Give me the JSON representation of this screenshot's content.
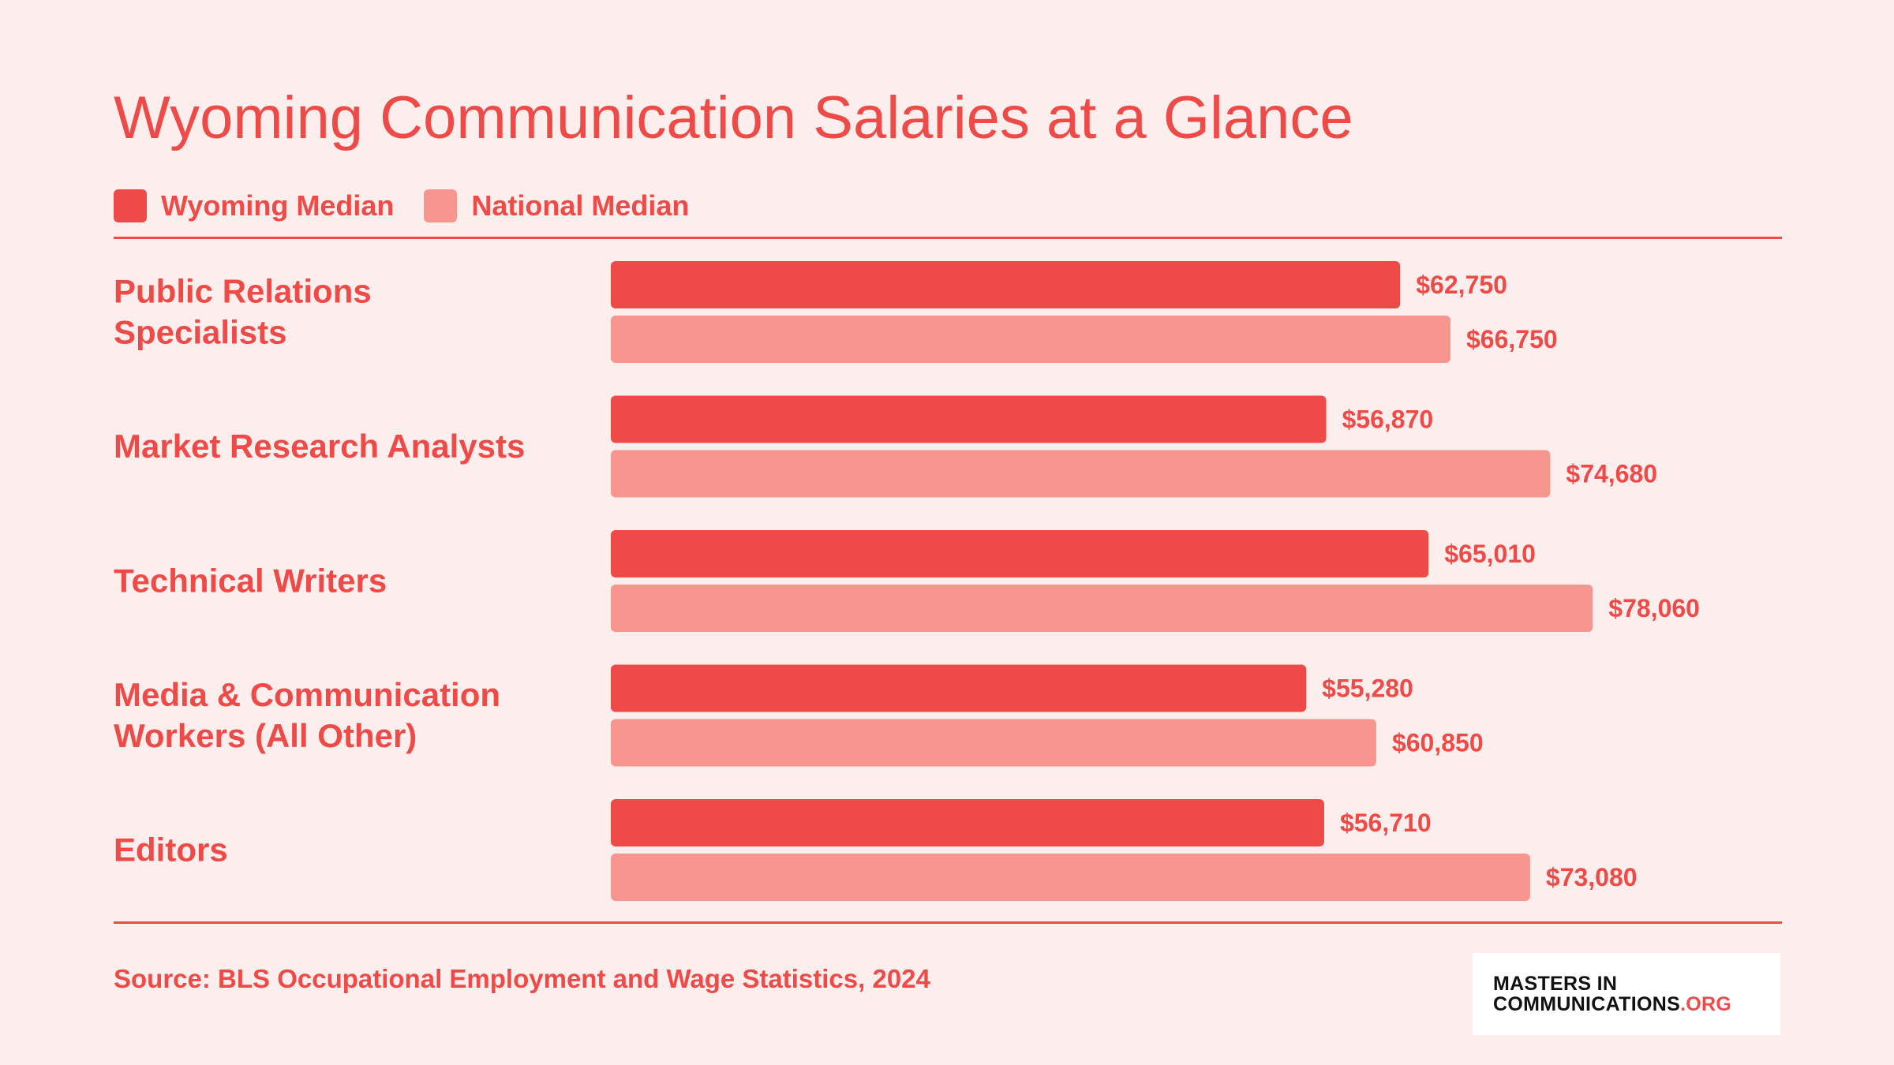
{
  "chart_data": {
    "type": "bar",
    "orientation": "horizontal",
    "title": "Wyoming Communication Salaries at a Glance",
    "categories": [
      [
        "Public Relations",
        "Specialists"
      ],
      [
        "Market Research Analysts"
      ],
      [
        "Technical Writers"
      ],
      [
        "Media & Communication",
        "Workers (All Other)"
      ],
      [
        "Editors"
      ]
    ],
    "series": [
      {
        "name": "Wyoming Median",
        "color": "#ee4a47",
        "values": [
          62750,
          56870,
          65010,
          55280,
          56710
        ],
        "labels": [
          "$62,750",
          "$56,870",
          "$65,010",
          "$55,280",
          "$56,710"
        ]
      },
      {
        "name": "National Median",
        "color": "#f7958f",
        "values": [
          66750,
          74680,
          78060,
          60850,
          73080
        ],
        "labels": [
          "$66,750",
          "$74,680",
          "$78,060",
          "$60,850",
          "$73,080"
        ]
      }
    ],
    "xlim": [
      0,
      90000
    ],
    "legend_position": "top-left",
    "grid": false
  },
  "footer": {
    "source": "Source: BLS Occupational Employment and Wage Statistics, 2024",
    "logo_line1": "MASTERS IN",
    "logo_line2": "COMMUNICATIONS",
    "logo_suffix": ".ORG"
  },
  "colors": {
    "text": "#ee4a47",
    "background": "#fdeeee"
  }
}
